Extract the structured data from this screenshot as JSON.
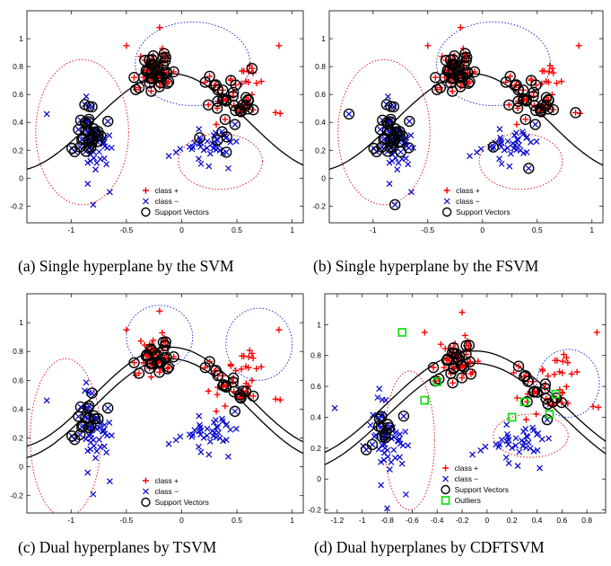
{
  "chart_data": [
    {
      "type": "scatter",
      "caption": "(a) Single hyperplane by the SVM",
      "xlim": [
        -1.4,
        1.1
      ],
      "ylim": [
        -0.32,
        1.2
      ],
      "xticks": [
        -1,
        -0.5,
        0,
        0.5,
        1
      ],
      "xtick_labels": [
        "-1",
        "-0.5",
        "0",
        "0.5",
        "1"
      ],
      "yticks": [
        -0.2,
        0,
        0.2,
        0.4,
        0.6,
        0.8,
        1
      ],
      "ytick_labels": [
        "-0.2",
        "0",
        "0.2",
        "0.4",
        "0.6",
        "0.8",
        "1"
      ],
      "legend": [
        "class +",
        "class −",
        "Support Vectors"
      ],
      "legend_position": "bottom-center",
      "hyperplanes": 1
    },
    {
      "type": "scatter",
      "caption": "(b) Single hyperplane by the FSVM",
      "xlim": [
        -1.4,
        1.1
      ],
      "ylim": [
        -0.32,
        1.2
      ],
      "xticks": [
        -1,
        -0.5,
        0,
        0.5,
        1
      ],
      "xtick_labels": [
        "-1",
        "-0.5",
        "0",
        "0.5",
        "1"
      ],
      "yticks": [
        -0.2,
        0,
        0.2,
        0.4,
        0.6,
        0.8,
        1
      ],
      "ytick_labels": [
        "-0.2",
        "0",
        "0.2",
        "0.4",
        "0.6",
        "0.8",
        "1"
      ],
      "legend": [
        "class +",
        "class −",
        "Support Vectors"
      ],
      "legend_position": "bottom-center",
      "hyperplanes": 1
    },
    {
      "type": "scatter",
      "caption": "(c) Dual hyperplanes by TSVM",
      "xlim": [
        -1.4,
        1.1
      ],
      "ylim": [
        -0.32,
        1.2
      ],
      "xticks": [
        -1,
        -0.5,
        0,
        0.5,
        1
      ],
      "xtick_labels": [
        "-1",
        "-0.5",
        "0",
        "0.5",
        "1"
      ],
      "yticks": [
        -0.2,
        0,
        0.2,
        0.4,
        0.6,
        0.8,
        1
      ],
      "ytick_labels": [
        "-0.2",
        "0",
        "0.2",
        "0.4",
        "0.6",
        "0.8",
        "1"
      ],
      "legend": [
        "class +",
        "class −",
        "Support Vectors"
      ],
      "legend_position": "bottom-center",
      "hyperplanes": 2
    },
    {
      "type": "scatter",
      "caption": "(d) Dual hyperplanes by CDFTSVM",
      "xlim": [
        -1.3,
        0.95
      ],
      "ylim": [
        -0.22,
        1.2
      ],
      "xticks": [
        -1.2,
        -1,
        -0.8,
        -0.6,
        -0.4,
        -0.2,
        0,
        0.2,
        0.4,
        0.6,
        0.8
      ],
      "xtick_labels": [
        "-1.2",
        "-1",
        "-0.8",
        "-0.6",
        "-0.4",
        "-0.2",
        "0",
        "0.2",
        "0.4",
        "0.6",
        "0.8"
      ],
      "yticks": [
        -0.2,
        0,
        0.2,
        0.4,
        0.6,
        0.8,
        1
      ],
      "ytick_labels": [
        "-0.2",
        "0",
        "0.2",
        "0.4",
        "0.6",
        "0.8",
        "1"
      ],
      "legend": [
        "class +",
        "class −",
        "Support Vectors",
        "Outliers"
      ],
      "legend_position": "bottom-center",
      "hyperplanes": 2
    }
  ],
  "colors": {
    "class_plus": "#ff0000",
    "class_minus": "#0000cc",
    "support_vector": "#000000",
    "outlier": "#00dd00",
    "contour_red": "#e02020",
    "contour_blue": "#2030e0"
  }
}
